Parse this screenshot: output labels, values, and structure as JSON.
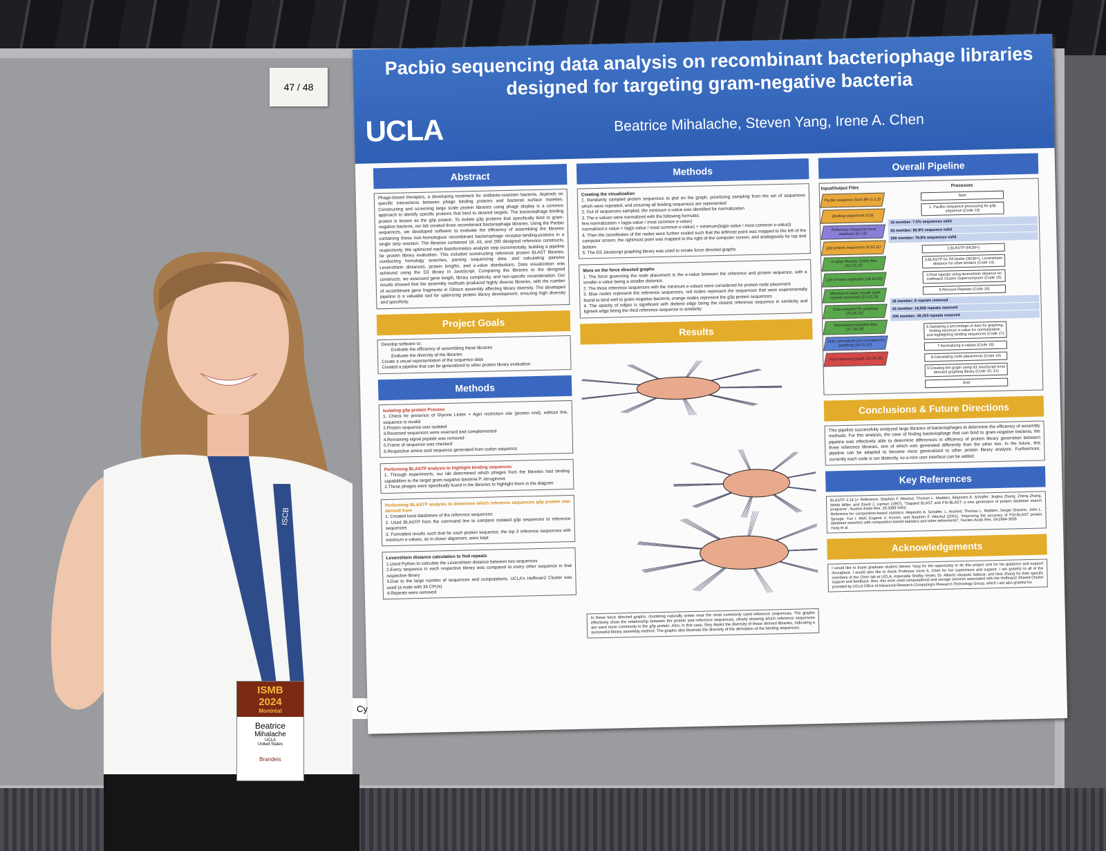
{
  "board_number": "47 / 48",
  "poster": {
    "title": "Pacbio sequencing data analysis on recombinant bacteriophage libraries designed for targeting gram-negative bacteria",
    "logo": "UCLA",
    "authors": "Beatrice Mihalache, Steven Yang, Irene A. Chen",
    "abstract": {
      "heading": "Abstract",
      "text": "Phage-based therapies, a developing treatment for antibiotic-resistant bacteria, depends on specific interactions between phage binding proteins and bacterial surface moieties. Constructing and screening large scale protein libraries using phage display is a common approach to identify specific proteins that bind to desired targets. The bacteriophage binding protein is known as the g3p protein. To isolate g3p proteins that specifically bind to gram-negative bacteria, our lab created three recombinant bacteriophage libraries. Using the Pacbio sequences, we developed software to evaluate the efficiency of assembling the libraries containing these non-homologous recombinant bacteriophage receptor-binding-proteins in a single step reaction. The libraries contained 18, 43, and 200 designed reference constructs, respectively. We optimized each bioinformatics analysis step incrementally, building a pipeline for protein library evaluation. This included constructing reference protein BLAST libraries, conducting homology searches, parsing sequencing data, and calculating pairwise Levenshtein distances, protein lengths, and e-value distributions. Data visualization was achieved using the D3 library in JavaScript. Comparing the libraries to the designed constructs, we assessed gene length, library complexity, and non-specific recombination. Our results showed that the assembly methods produced highly diverse libraries, with the number of recombinant gene fragments in Gibson assembly affecting library diversity. The developed pipeline is a valuable tool for optimizing protein library development, ensuring high diversity and specificity."
    },
    "goals": {
      "heading": "Project Goals",
      "items": [
        "Develop software to:",
        "Evaluate the efficiency of assembling these libraries",
        "Evaluate the diversity of the libraries",
        "Create a visual representation of the sequence data",
        "Created a pipeline that can be generalized to other protein library evaluation"
      ]
    },
    "methods_left": {
      "heading": "Methods",
      "subsections": [
        {
          "title": "Isolating g3p protein Process",
          "items": [
            "1. Check for presence of Glycine Linker + AgeI restriction site (protein end), without this, sequence is invalid",
            "2.Protein sequence was isolated",
            "3.Reversed sequences were reversed and complemented",
            "4.Remaining signal peptide was removed",
            "5.Frame of sequence was checked",
            "6.Respective amino acid sequence generated from codon sequence"
          ]
        },
        {
          "title": "Performing BLASTP analysis to highlight binding sequences",
          "items": [
            "1. Through experiments, our lab determined which phages from the libraries had binding capabilities to the target gram negative bacteria P. aeruginosa",
            "2.These phages were specifically found in the libraries to highlight them in the diagram"
          ]
        },
        {
          "title": "Performing BLASTP analysis to determine which reference sequences g3p protein was derived from",
          "items": [
            "1. Created local databases of the reference sequences",
            "2. Used BLASTP from the command line to compare isolated g3p sequences to reference sequences",
            "3. Formatted results such that for each protein sequence, the top 3 reference sequences with minimum e-values, as in closer alignment, were kept"
          ]
        },
        {
          "title": "Levenshtein distance calculation to find repeats",
          "items": [
            "1.Used Python to calculate the Levenshtein distance between two sequences",
            "2.Every sequence in each respective library was compared to every other sequence in that respective library",
            "3.Due to the large number of sequences and computations, UCLA's Hoffman2 Cluster was used (a node with 36 CPUs)",
            "4.Repeats were removed"
          ]
        }
      ]
    },
    "methods_mid": {
      "heading": "Methods",
      "subsections": [
        {
          "title": "Creating the visualization",
          "items": [
            "1. Randomly sampled protein sequences to plot on the graph, prioritizing sampling from the set of sequences which were repeated, and ensuring all binding sequences are represented",
            "2. Out of sequences sampled, the minimum e-value was identified for normalization",
            "3. The e-values were normalized with the following formulas:",
            "first normalization = log(e-value / most common e-value)",
            "normalized e-value = log(e-value / most common e-value) + minimum(log(e-value / most common e-value))",
            "4. Then the coordinates of the nodes were further scaled such that the leftmost point was mapped to the left of the computer screen, the rightmost point was mapped to the right of the computer screen, and analogously for top and bottom.",
            "5. The D3 Javascript graphing library was used to create force directed graphs"
          ]
        },
        {
          "title": "More on the force directed graphs",
          "items": [
            "1. The force governing the node placement is the e-value between the reference and protein sequence, with a smaller e-value being a smaller distance.",
            "2. The three reference sequences with the minimum e-values were considered for protein node placement",
            "3. Blue nodes represent the reference sequences, red nodes represent the sequences that were experimentally found to bind well to gram-negative bacteria, orange nodes represent the g3p protein sequences",
            "4. The opacity of edges is significant with darkest edge being the closest reference sequence in similarity and lightest edge being the third reference sequence in similarity"
          ]
        }
      ]
    },
    "results": {
      "heading": "Results",
      "caption": "In these force directed graphs, clustering naturally arises near the most commonly used reference sequences. The graphs effectively show the relationship between the protein and reference sequences, clearly showing which reference sequences are used more commonly in the g3p protein. Also, in this case, they depict the diversity of these derived libraries, indicating a successful library assembly method. The graphs also illustrate the diversity of the derivation of the binding sequences."
    },
    "pipeline": {
      "heading": "Overall Pipeline",
      "files_header": "Input/Output Files",
      "processes_header": "Processes",
      "files": [
        "Pacbio sequence fasta file (1,2,3)",
        "Binding sequences (4,5)",
        "Reference Sequence local database (6,7,8)",
        "g3p protein sequences (9,10,11)",
        "e-value Results: Entire files (12,13,14)",
        "List of exact replicates (18,19,20)",
        "Minimum e-value results (with repeats removed) (21,22,23)",
        "Data sampled for graphing (24,25,26)",
        "Normalized sampled data (27,28,29)",
        "Data normalized and formatted for graphing (30,31,32)",
        "Force directed graph (33,34,35)"
      ],
      "steps": [
        "Start",
        "1. PacBio Sequence processing for g3p sequence (Code 13)",
        "2.BLASTP (NCBI+)",
        "3.BLASTP for PA binder (NCBI+), Levenshtein distance for other binders (Code 14)",
        "4.Find repeats using levenshtein distance on Hoffman2 Cluster Supercomputer (Code 15)",
        "5.Remove Repeats (Code 16)",
        "6.Sampling a percentage of data for graphing, finding minimum e-value for normalization, and highlighting binding sequences (Code 17)",
        "7.Normalizing e-values (Code 18)",
        "8.Calculating node placements (Code 19)",
        "9.Creating the graph using d3 JavaScript force directed graphing library (Code 20, 21)",
        "End"
      ],
      "stats": [
        "18 member: 7.5% sequences valid",
        "43 member: 80.9% sequence valid",
        "200 member: 76.8% sequences valid",
        "18 member: 8 repeats removed",
        "43 member: 16,958 repeats removed",
        "200 member: 49,253 repeats removed"
      ]
    },
    "conclusions": {
      "heading": "Conclusions & Future Directions",
      "text": "This pipeline successfully analyzed large libraries of bacteriophages to determine the efficiency of assembly methods. For this analysis, the case of finding bacteriophage that can bind to gram-negative bacteria, the pipeline was effectively able to determine differences in efficiency of protein library generation between three reference libraries, one of which was generated differently than the other two. In the future, this pipeline can be adapted to become more generalized to other protein library analysis. Furthermore, currently each code is run distinctly, so a nice user interface can be added."
    },
    "references": {
      "heading": "Key References",
      "items": [
        "BLASTP 2.14.1+ Reference: Stephen F. Altschul, Thomas L. Madden, Alejandro A. Schaffer, Jinghui Zhang, Zheng Zhang, Webb Miller, and David J. Lipman (1997), \"Gapped BLAST and PSI-BLAST: a new generation of protein database search programs\", Nucleic Acids Res. 25:3389-3402.",
        "Reference for composition-based statistics: Alejandro A. Schaffer, L. Aravind, Thomas L. Madden, Sergei Shavirin, John L. Spouge, Yuri I. Wolf, Eugene V. Koonin, and Stephen F. Altschul (2001), \"Improving the accuracy of PSI-BLAST protein database searches with composition-based statistics and other refinements\", Nucleic Acids Res. 29:2994-3005.",
        "Yang et al."
      ]
    },
    "acknowledgements": {
      "heading": "Acknowledgements",
      "text": "I would like to thank graduate student Steven Yang for the opportunity to do this project and for his guidance and support throughout. I would also like to thank Professor Irene A. Chen for her supervision and support. I am grateful to all of the members of the Chen lab at UCLA, especially Shelby Vexler, Dr. Alberto Vazquez Salazar, and Nick Zhang for their specific support and feedback. Also, this work used computational and storage services associated with the Hoffman2 Shared Cluster provided by UCLA Office of Advanced Research Computing's Research Technology Group, which I am also grateful for."
    }
  },
  "badge": {
    "event": "ISMB",
    "year": "2024",
    "city": "Montréal",
    "first_name": "Beatrice",
    "last_name": "Mihalache",
    "affiliation": "UCLA",
    "country": "United States",
    "sponsor": "Brandeis"
  },
  "lanyard": "ISCB",
  "neighbor_sign": "Cyto"
}
